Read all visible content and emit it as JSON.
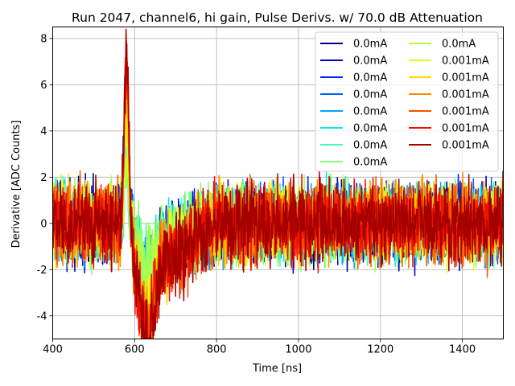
{
  "chart_data": {
    "type": "line",
    "title": "Run 2047, channel6, hi gain, Pulse Derivs. w/ 70.0 dB Attenuation",
    "xlabel": "Time [ns]",
    "ylabel": "Derivative [ADC Counts]",
    "xlim": [
      400,
      1500
    ],
    "ylim": [
      -5.0,
      8.5
    ],
    "xticks": [
      400,
      600,
      800,
      1000,
      1200,
      1400
    ],
    "yticks": [
      -4,
      -2,
      0,
      2,
      4,
      6,
      8
    ],
    "grid": true,
    "legend_position": "top-right",
    "legend_columns": 2,
    "pulse": {
      "peak_time": 580,
      "undershoot_time": 628
    },
    "series": [
      {
        "name": "0.0mA",
        "color": "#00007f",
        "peak": 6.0,
        "trough": -2.8,
        "noise": 0.78
      },
      {
        "name": "0.0mA",
        "color": "#0000c8",
        "peak": 5.9,
        "trough": -2.6,
        "noise": 0.8
      },
      {
        "name": "0.0mA",
        "color": "#0020ff",
        "peak": 5.8,
        "trough": -2.5,
        "noise": 0.8
      },
      {
        "name": "0.0mA",
        "color": "#0060ff",
        "peak": 5.5,
        "trough": -2.4,
        "noise": 0.78
      },
      {
        "name": "0.0mA",
        "color": "#00a4ff",
        "peak": 4.5,
        "trough": -2.0,
        "noise": 0.78
      },
      {
        "name": "0.0mA",
        "color": "#12e4e4",
        "peak": 3.5,
        "trough": -1.8,
        "noise": 0.78
      },
      {
        "name": "0.0mA",
        "color": "#46ffb1",
        "peak": 2.9,
        "trough": -1.7,
        "noise": 0.78
      },
      {
        "name": "0.0mA",
        "color": "#7dff7a",
        "peak": 2.4,
        "trough": -1.5,
        "noise": 0.78
      },
      {
        "name": "0.0mA",
        "color": "#b4ff43",
        "peak": 2.6,
        "trough": -1.8,
        "noise": 0.78
      },
      {
        "name": "0.001mA",
        "color": "#e4ff12",
        "peak": 5.0,
        "trough": -3.2,
        "noise": 0.8
      },
      {
        "name": "0.001mA",
        "color": "#ffd400",
        "peak": 5.6,
        "trough": -3.4,
        "noise": 0.8
      },
      {
        "name": "0.001mA",
        "color": "#ff8c00",
        "peak": 6.5,
        "trough": -3.7,
        "noise": 0.82
      },
      {
        "name": "0.001mA",
        "color": "#ff4e00",
        "peak": 7.3,
        "trough": -4.0,
        "noise": 0.82
      },
      {
        "name": "0.001mA",
        "color": "#ee1000",
        "peak": 7.6,
        "trough": -4.2,
        "noise": 0.84
      },
      {
        "name": "0.001mA",
        "color": "#a50000",
        "peak": 7.8,
        "trough": -4.3,
        "noise": 0.85
      }
    ]
  }
}
